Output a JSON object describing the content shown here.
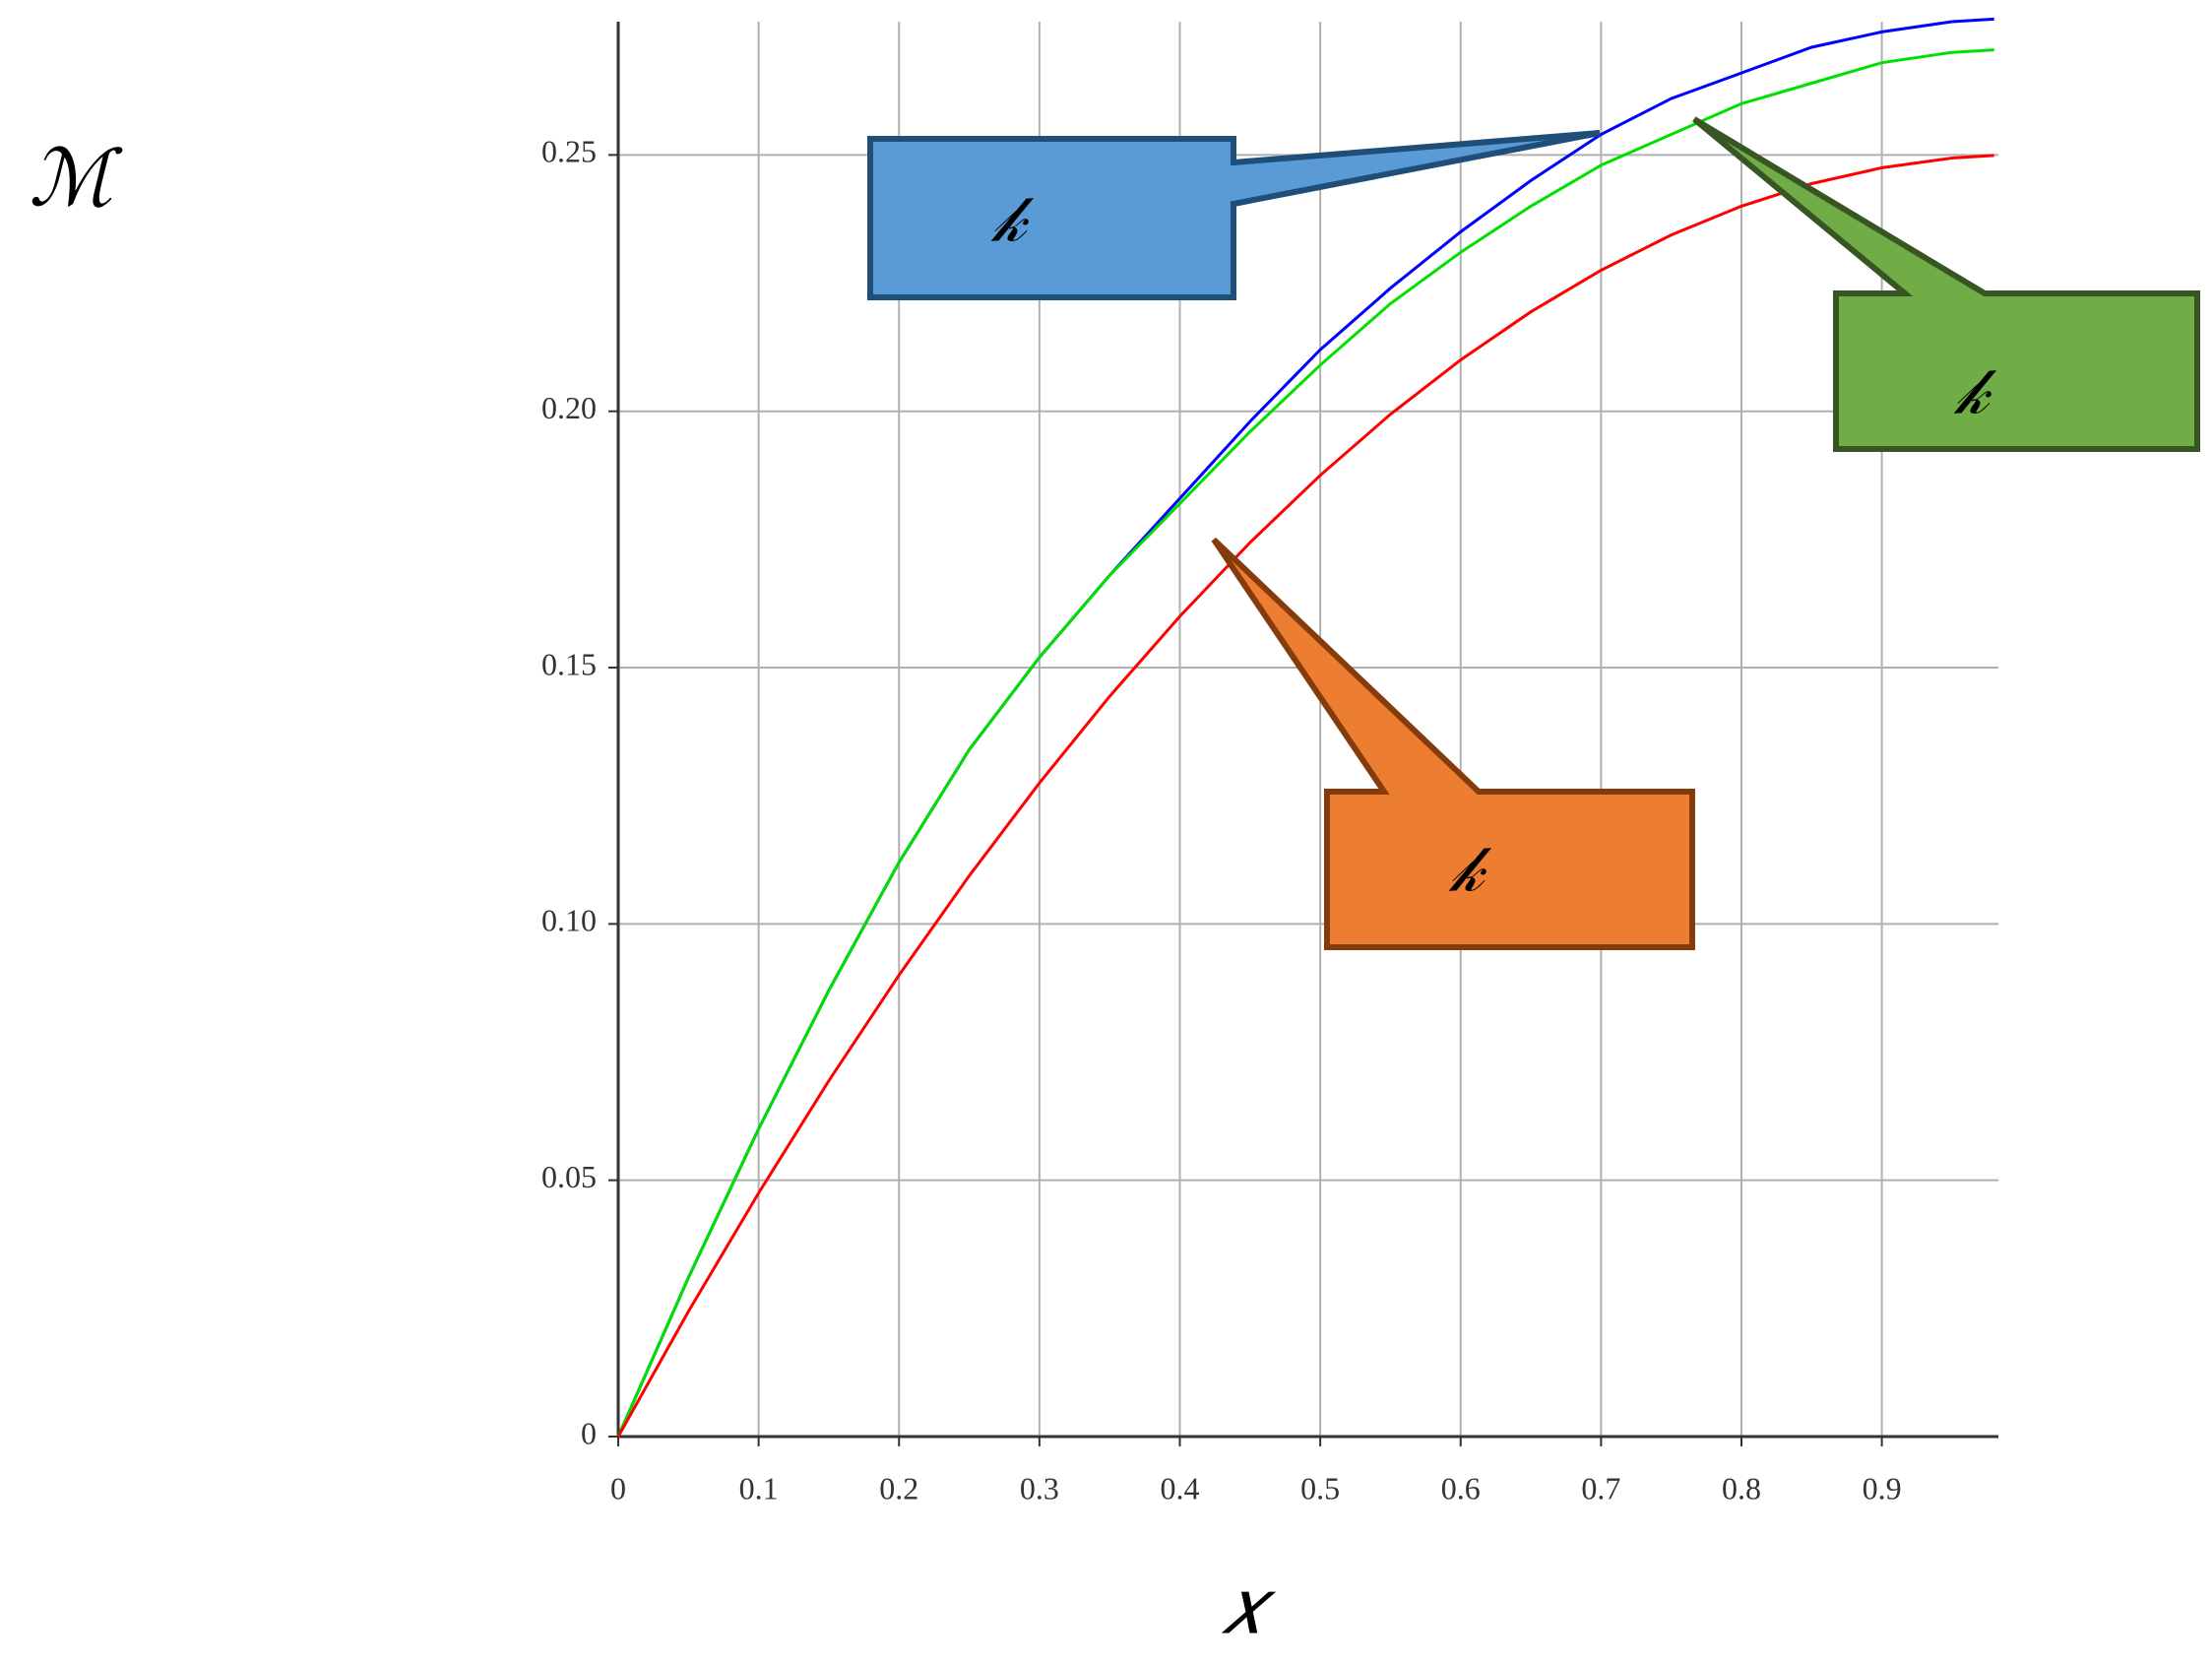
{
  "chart_data": {
    "type": "line",
    "y_label": "ℳ",
    "x_label": "𝑥",
    "x": [
      0,
      0.05,
      0.1,
      0.15,
      0.2,
      0.25,
      0.3,
      0.35,
      0.4,
      0.45,
      0.5,
      0.55,
      0.6,
      0.65,
      0.7,
      0.75,
      0.8,
      0.85,
      0.9,
      0.95,
      0.98
    ],
    "series": [
      {
        "color": "#0000ff",
        "values": [
          0,
          0.031,
          0.06,
          0.087,
          0.112,
          0.134,
          0.152,
          0.168,
          0.183,
          0.198,
          0.212,
          0.224,
          0.235,
          0.245,
          0.254,
          0.261,
          0.266,
          0.271,
          0.274,
          0.276,
          0.2765
        ]
      },
      {
        "color": "#00e000",
        "values": [
          0,
          0.031,
          0.06,
          0.087,
          0.112,
          0.134,
          0.152,
          0.168,
          0.182,
          0.196,
          0.209,
          0.221,
          0.231,
          0.24,
          0.248,
          0.254,
          0.26,
          0.264,
          0.268,
          0.27,
          0.2705
        ]
      },
      {
        "color": "#ff0000",
        "values": [
          0,
          0.0244,
          0.0475,
          0.0694,
          0.09,
          0.1094,
          0.1275,
          0.1444,
          0.16,
          0.1744,
          0.1875,
          0.1994,
          0.21,
          0.2194,
          0.2275,
          0.2344,
          0.24,
          0.2444,
          0.2475,
          0.2494,
          0.2499
        ]
      }
    ],
    "annotations": [
      {
        "text": "𝓀",
        "color": "#5b9bd5"
      },
      {
        "text": "𝓀",
        "color": "#70ad47"
      },
      {
        "text": "𝓀",
        "color": "#ed7d31"
      }
    ],
    "xlim": [
      0,
      0.983
    ],
    "ylim": [
      0,
      0.276
    ],
    "xticks": [
      0,
      0.1,
      0.2,
      0.3,
      0.4,
      0.5,
      0.6,
      0.7,
      0.8,
      0.9
    ],
    "yticks": [
      0,
      0.05,
      {
        "value": 0.1,
        "label": "0.10"
      },
      0.15,
      {
        "value": 0.2,
        "label": "0.20"
      },
      0.25
    ],
    "grid": true
  }
}
